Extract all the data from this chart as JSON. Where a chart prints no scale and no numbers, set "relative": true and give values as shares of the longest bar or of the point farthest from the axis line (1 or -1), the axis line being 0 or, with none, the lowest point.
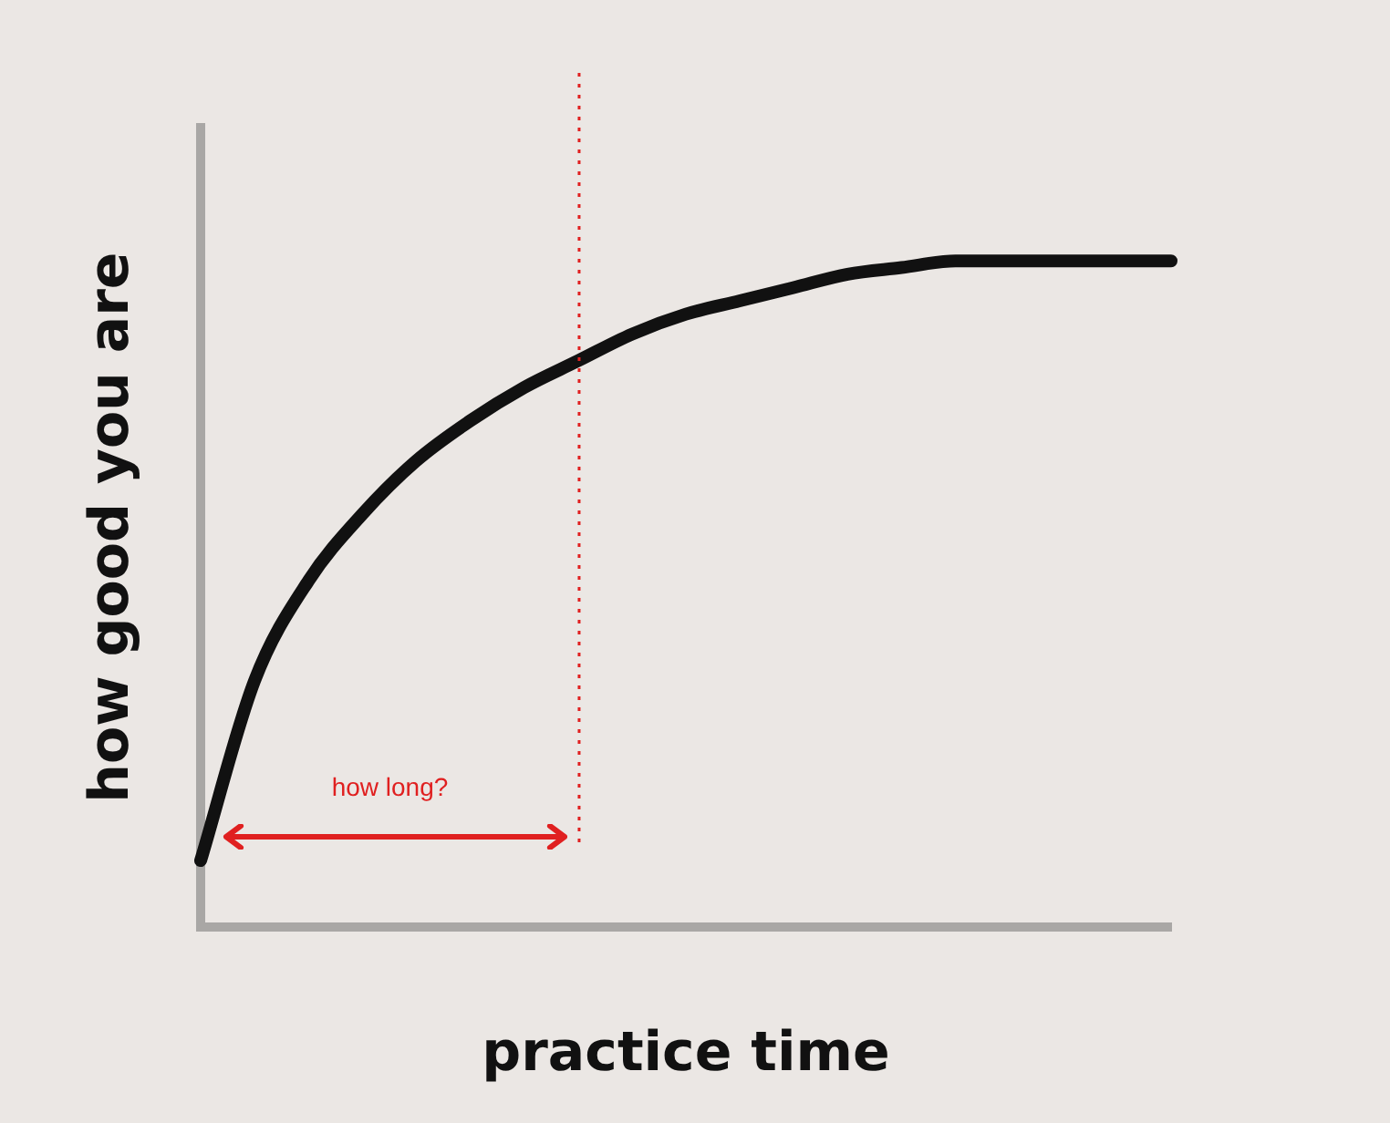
{
  "chart_data": {
    "type": "line",
    "relative": true,
    "xlabel": "practice time",
    "ylabel": "how good you are",
    "categories": [
      null,
      null,
      null,
      null,
      null,
      null,
      null,
      null,
      null,
      null,
      null,
      null,
      null,
      null,
      null,
      null,
      null,
      null,
      null
    ],
    "series": [
      {
        "color": "#111111",
        "values": [
          0.1,
          0.37,
          0.52,
          0.62,
          0.7,
          0.76,
          0.81,
          0.85,
          0.89,
          0.92,
          0.94,
          0.96,
          0.98,
          0.99,
          1,
          1,
          1,
          1,
          1
        ]
      }
    ],
    "annotations": [
      "how long?"
    ],
    "grid": false,
    "legend": false,
    "marker": "none"
  }
}
